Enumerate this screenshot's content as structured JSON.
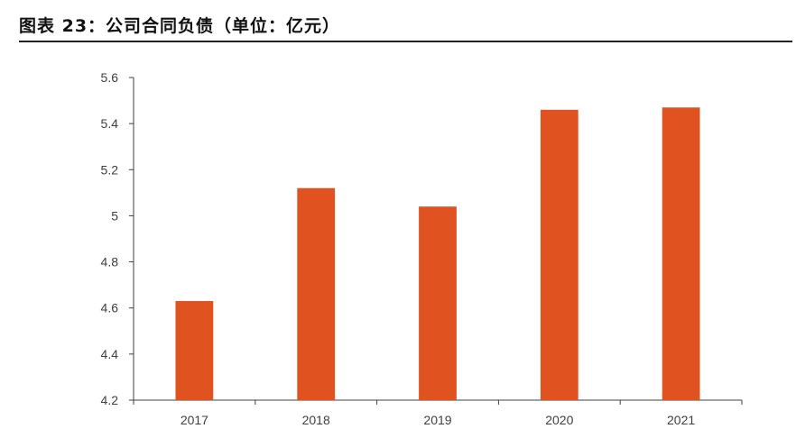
{
  "figure": {
    "title": "图表 23：公司合同负债（单位：亿元）"
  },
  "chart_data": {
    "type": "bar",
    "categories": [
      "2017",
      "2018",
      "2019",
      "2020",
      "2021"
    ],
    "series": [
      {
        "values": [
          4.63,
          5.12,
          5.04,
          5.46,
          5.47
        ]
      }
    ],
    "ylim": [
      4.2,
      5.6
    ],
    "yticks": [
      4.2,
      4.4,
      4.6,
      4.8,
      5.0,
      5.2,
      5.4,
      5.6
    ],
    "ytick_labels": [
      "4.2",
      "4.4",
      "4.6",
      "4.8",
      "5",
      "5.2",
      "5.4",
      "5.6"
    ],
    "xlabel": "",
    "ylabel": "",
    "grid": false,
    "legend": "none",
    "bar_color": "#e0521f"
  }
}
